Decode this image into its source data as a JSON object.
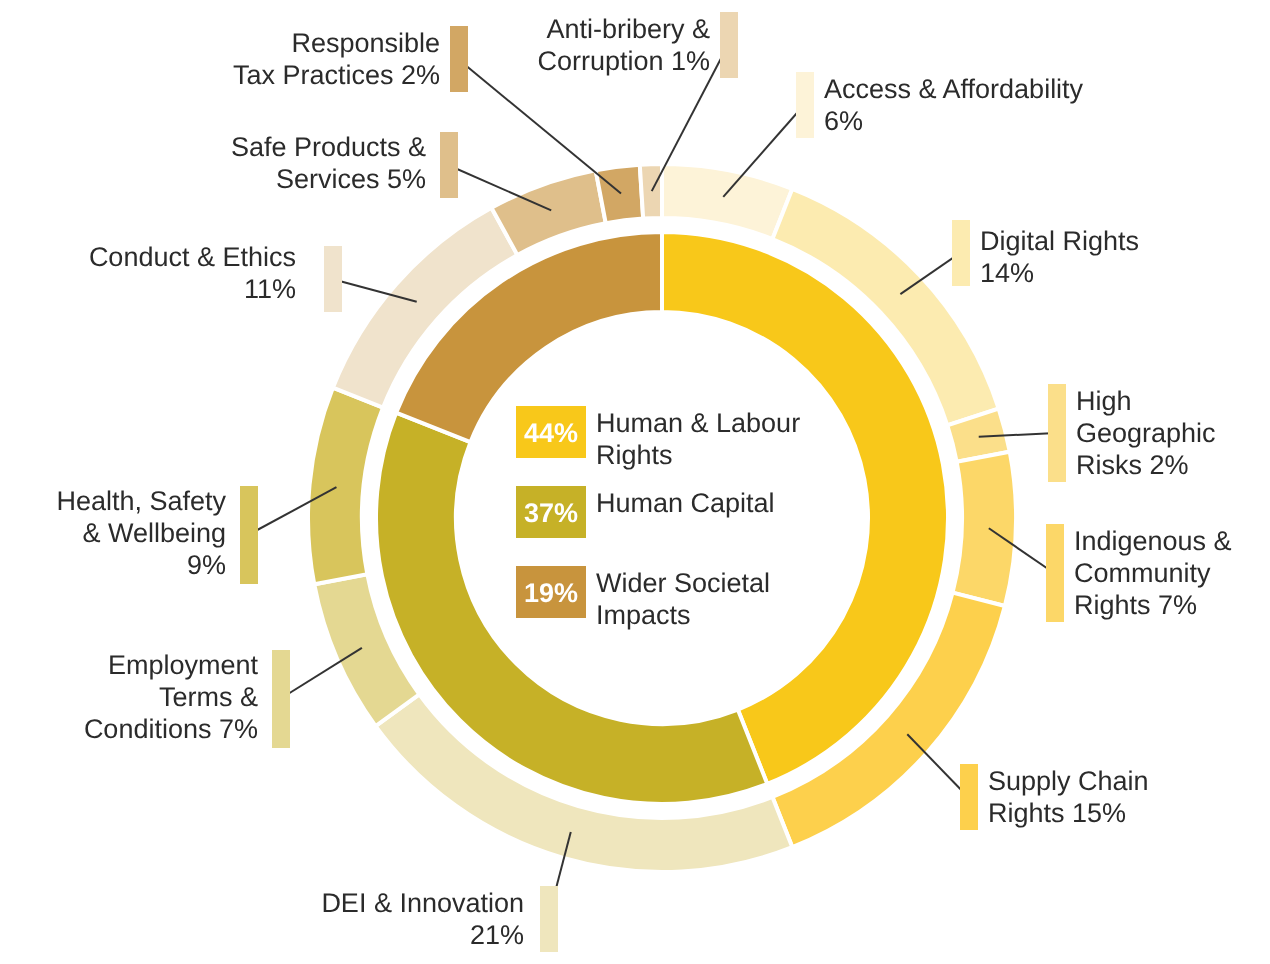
{
  "chart_data": [
    {
      "type": "donut",
      "categories": [
        "Human & Labour Rights",
        "Human Capital",
        "Wider Societal Impacts"
      ],
      "values": [
        44,
        37,
        19
      ],
      "value_labels": [
        "44%",
        "37%",
        "19%"
      ],
      "colors": [
        "#f8c81a",
        "#c6b127",
        "#c8943d"
      ],
      "legend": "center"
    },
    {
      "type": "donut",
      "categories": [
        "Access & Affordability",
        "Digital Rights",
        "High Geographic Risks",
        "Indigenous & Community Rights",
        "Supply Chain Rights",
        "DEI & Innovation",
        "Employment Terms & Conditions",
        "Health, Safety & Wellbeing",
        "Conduct & Ethics",
        "Safe Products & Services",
        "Responsible Tax Practices",
        "Anti-bribery & Corruption"
      ],
      "values": [
        6,
        14,
        2,
        7,
        15,
        21,
        7,
        9,
        11,
        5,
        2,
        1
      ],
      "value_labels": [
        "6%",
        "14%",
        "2%",
        "7%",
        "15%",
        "21%",
        "7%",
        "9%",
        "11%",
        "5%",
        "2%",
        "1%"
      ],
      "colors": [
        "#fdf3d8",
        "#fcebb0",
        "#fbdf8a",
        "#fcd768",
        "#fdd04c",
        "#efe6bd",
        "#e4d892",
        "#d8c55c",
        "#f0e3cc",
        "#dfbf8b",
        "#d2a764",
        "#ecd6b2"
      ]
    }
  ]
}
